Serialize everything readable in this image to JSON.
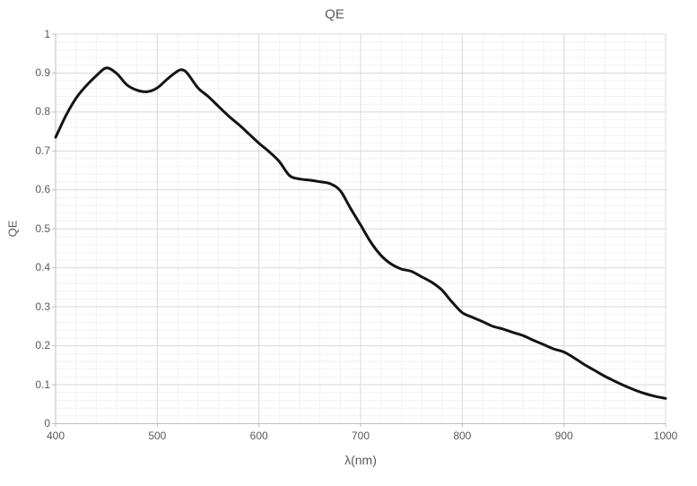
{
  "chart_data": {
    "type": "line",
    "title": "QE",
    "xlabel": "λ(nm)",
    "ylabel": "QE",
    "xlim": [
      400,
      1000
    ],
    "ylim": [
      0,
      1
    ],
    "x_major_step": 100,
    "x_minor_step": 20,
    "y_major_step": 0.1,
    "y_minor_step": 0.02,
    "grid": "major and minor, both axes",
    "legend": "none",
    "series": [
      {
        "name": "QE",
        "points": [
          [
            400,
            0.735
          ],
          [
            410,
            0.79
          ],
          [
            420,
            0.835
          ],
          [
            430,
            0.867
          ],
          [
            440,
            0.893
          ],
          [
            450,
            0.913
          ],
          [
            460,
            0.899
          ],
          [
            470,
            0.87
          ],
          [
            480,
            0.856
          ],
          [
            490,
            0.852
          ],
          [
            500,
            0.862
          ],
          [
            510,
            0.885
          ],
          [
            520,
            0.905
          ],
          [
            525,
            0.908
          ],
          [
            530,
            0.898
          ],
          [
            540,
            0.862
          ],
          [
            550,
            0.84
          ],
          [
            560,
            0.815
          ],
          [
            570,
            0.79
          ],
          [
            580,
            0.768
          ],
          [
            590,
            0.744
          ],
          [
            600,
            0.72
          ],
          [
            610,
            0.698
          ],
          [
            620,
            0.673
          ],
          [
            630,
            0.637
          ],
          [
            640,
            0.628
          ],
          [
            650,
            0.625
          ],
          [
            660,
            0.621
          ],
          [
            670,
            0.616
          ],
          [
            680,
            0.598
          ],
          [
            690,
            0.553
          ],
          [
            700,
            0.51
          ],
          [
            710,
            0.466
          ],
          [
            720,
            0.432
          ],
          [
            730,
            0.41
          ],
          [
            740,
            0.397
          ],
          [
            750,
            0.391
          ],
          [
            760,
            0.377
          ],
          [
            770,
            0.363
          ],
          [
            780,
            0.343
          ],
          [
            790,
            0.312
          ],
          [
            800,
            0.285
          ],
          [
            810,
            0.273
          ],
          [
            820,
            0.262
          ],
          [
            830,
            0.25
          ],
          [
            840,
            0.243
          ],
          [
            850,
            0.234
          ],
          [
            860,
            0.226
          ],
          [
            870,
            0.214
          ],
          [
            880,
            0.203
          ],
          [
            890,
            0.192
          ],
          [
            900,
            0.184
          ],
          [
            910,
            0.169
          ],
          [
            920,
            0.152
          ],
          [
            930,
            0.137
          ],
          [
            940,
            0.122
          ],
          [
            950,
            0.109
          ],
          [
            960,
            0.097
          ],
          [
            970,
            0.086
          ],
          [
            980,
            0.077
          ],
          [
            990,
            0.07
          ],
          [
            1000,
            0.065
          ]
        ]
      }
    ]
  },
  "colors": {
    "line": "#141414",
    "major_grid": "#d9d9d9",
    "minor_grid": "#f2f2f2",
    "axis_line": "#bfbfbf",
    "text": "#595959",
    "background": "#ffffff"
  }
}
